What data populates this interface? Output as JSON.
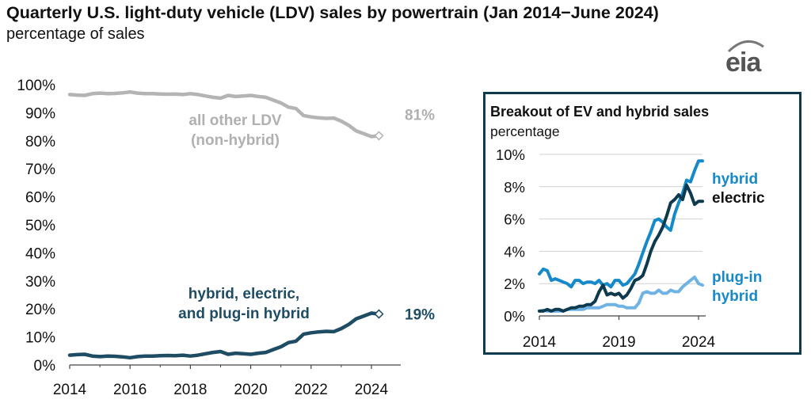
{
  "title": "Quarterly U.S. light-duty vehicle (LDV) sales by powertrain (Jan 2014−June 2024)",
  "subtitle": "percentage of sales",
  "logo_text": "eia",
  "colors": {
    "other": "#b4b4b4",
    "combined": "#1e4c63",
    "hybrid": "#1689c9",
    "electric": "#0d3a4f",
    "plugin": "#6fb3e5",
    "grid": "#d0d0d0",
    "frame": "#0d3a4f"
  },
  "chart_data": [
    {
      "type": "line",
      "xlabel": "",
      "ylabel": "",
      "xlim": [
        2014,
        2024.5
      ],
      "ylim": [
        0,
        100
      ],
      "grid": true,
      "x_ticks": [
        "2014",
        "2016",
        "2018",
        "2020",
        "2022",
        "2024"
      ],
      "y_ticks": [
        "0%",
        "10%",
        "20%",
        "30%",
        "40%",
        "50%",
        "60%",
        "70%",
        "80%",
        "90%",
        "100%"
      ],
      "series": [
        {
          "name": "all other LDV (non-hybrid)",
          "label_line1": "all other LDV",
          "label_line2": "(non-hybrid)",
          "end_label": "81%",
          "x": [
            2014.0,
            2014.25,
            2014.5,
            2014.75,
            2015.0,
            2015.25,
            2015.5,
            2015.75,
            2016.0,
            2016.25,
            2016.5,
            2016.75,
            2017.0,
            2017.25,
            2017.5,
            2017.75,
            2018.0,
            2018.25,
            2018.5,
            2018.75,
            2019.0,
            2019.25,
            2019.5,
            2019.75,
            2020.0,
            2020.25,
            2020.5,
            2020.75,
            2021.0,
            2021.25,
            2021.5,
            2021.75,
            2022.0,
            2022.25,
            2022.5,
            2022.75,
            2023.0,
            2023.25,
            2023.5,
            2023.75,
            2024.0,
            2024.25
          ],
          "values": [
            96.5,
            96.3,
            96.2,
            96.8,
            97.0,
            96.8,
            96.9,
            97.1,
            97.4,
            97.0,
            96.8,
            96.8,
            96.7,
            96.6,
            96.7,
            96.5,
            96.8,
            96.5,
            96.0,
            95.5,
            95.2,
            96.2,
            95.8,
            96.0,
            96.2,
            95.8,
            95.5,
            94.5,
            93.5,
            92.0,
            91.5,
            89.0,
            88.5,
            88.2,
            88.0,
            88.1,
            87.0,
            85.5,
            83.5,
            82.5,
            81.5,
            81.8
          ]
        },
        {
          "name": "hybrid, electric, and plug-in hybrid",
          "label_line1": "hybrid, electric,",
          "label_line2": "and plug-in hybrid",
          "end_label": "19%",
          "x": [
            2014.0,
            2014.25,
            2014.5,
            2014.75,
            2015.0,
            2015.25,
            2015.5,
            2015.75,
            2016.0,
            2016.25,
            2016.5,
            2016.75,
            2017.0,
            2017.25,
            2017.5,
            2017.75,
            2018.0,
            2018.25,
            2018.5,
            2018.75,
            2019.0,
            2019.25,
            2019.5,
            2019.75,
            2020.0,
            2020.25,
            2020.5,
            2020.75,
            2021.0,
            2021.25,
            2021.5,
            2021.75,
            2022.0,
            2022.25,
            2022.5,
            2022.75,
            2023.0,
            2023.25,
            2023.5,
            2023.75,
            2024.0,
            2024.25
          ],
          "values": [
            3.5,
            3.7,
            3.8,
            3.2,
            3.0,
            3.2,
            3.1,
            2.9,
            2.6,
            3.0,
            3.2,
            3.2,
            3.3,
            3.4,
            3.3,
            3.5,
            3.2,
            3.5,
            4.0,
            4.5,
            4.8,
            3.8,
            4.2,
            4.0,
            3.8,
            4.2,
            4.5,
            5.5,
            6.5,
            8.0,
            8.5,
            11.0,
            11.5,
            11.8,
            12.0,
            11.9,
            13.0,
            14.5,
            16.5,
            17.5,
            18.5,
            18.2
          ]
        }
      ]
    },
    {
      "type": "line",
      "title": "Breakout of EV and hybrid sales",
      "subtitle": "percentage",
      "xlabel": "",
      "ylabel": "",
      "xlim": [
        2014,
        2024.25
      ],
      "ylim": [
        0,
        10
      ],
      "grid": true,
      "x_ticks": [
        "2014",
        "2019",
        "2024"
      ],
      "y_ticks": [
        "0%",
        "2%",
        "4%",
        "6%",
        "8%",
        "10%"
      ],
      "series": [
        {
          "name": "hybrid",
          "x": [
            2014.0,
            2014.25,
            2014.5,
            2014.75,
            2015.0,
            2015.25,
            2015.5,
            2015.75,
            2016.0,
            2016.25,
            2016.5,
            2016.75,
            2017.0,
            2017.25,
            2017.5,
            2017.75,
            2018.0,
            2018.25,
            2018.5,
            2018.75,
            2019.0,
            2019.25,
            2019.5,
            2019.75,
            2020.0,
            2020.25,
            2020.5,
            2020.75,
            2021.0,
            2021.25,
            2021.5,
            2021.75,
            2022.0,
            2022.25,
            2022.5,
            2022.75,
            2023.0,
            2023.25,
            2023.5,
            2023.75,
            2024.0,
            2024.25
          ],
          "values": [
            2.6,
            2.9,
            2.8,
            2.2,
            2.3,
            2.2,
            2.1,
            2.0,
            1.8,
            2.2,
            2.2,
            2.0,
            2.1,
            2.1,
            2.0,
            2.2,
            1.9,
            2.0,
            1.8,
            2.2,
            2.2,
            1.9,
            2.0,
            2.3,
            2.6,
            3.2,
            3.9,
            4.6,
            5.2,
            5.9,
            6.0,
            5.8,
            5.5,
            5.3,
            6.3,
            7.0,
            7.6,
            8.4,
            8.3,
            9.0,
            9.6,
            9.6
          ]
        },
        {
          "name": "electric",
          "x": [
            2014.0,
            2014.25,
            2014.5,
            2014.75,
            2015.0,
            2015.25,
            2015.5,
            2015.75,
            2016.0,
            2016.25,
            2016.5,
            2016.75,
            2017.0,
            2017.25,
            2017.5,
            2017.75,
            2018.0,
            2018.25,
            2018.5,
            2018.75,
            2019.0,
            2019.25,
            2019.5,
            2019.75,
            2020.0,
            2020.25,
            2020.5,
            2020.75,
            2021.0,
            2021.25,
            2021.5,
            2021.75,
            2022.0,
            2022.25,
            2022.5,
            2022.75,
            2023.0,
            2023.25,
            2023.5,
            2023.75,
            2024.0,
            2024.25
          ],
          "values": [
            0.3,
            0.3,
            0.4,
            0.3,
            0.4,
            0.4,
            0.3,
            0.4,
            0.5,
            0.5,
            0.6,
            0.6,
            0.7,
            0.7,
            0.9,
            1.5,
            1.9,
            1.3,
            1.4,
            1.3,
            1.4,
            1.1,
            1.3,
            1.7,
            2.2,
            2.3,
            2.5,
            3.2,
            4.0,
            4.6,
            5.0,
            5.5,
            6.2,
            7.0,
            7.2,
            7.5,
            7.2,
            8.1,
            7.6,
            6.9,
            7.1,
            7.1
          ]
        },
        {
          "name": "plug-in hybrid",
          "label_line1": "plug-in",
          "label_line2": "hybrid",
          "x": [
            2014.0,
            2014.25,
            2014.5,
            2014.75,
            2015.0,
            2015.25,
            2015.5,
            2015.75,
            2016.0,
            2016.25,
            2016.5,
            2016.75,
            2017.0,
            2017.25,
            2017.5,
            2017.75,
            2018.0,
            2018.25,
            2018.5,
            2018.75,
            2019.0,
            2019.25,
            2019.5,
            2019.75,
            2020.0,
            2020.25,
            2020.5,
            2020.75,
            2021.0,
            2021.25,
            2021.5,
            2021.75,
            2022.0,
            2022.25,
            2022.5,
            2022.75,
            2023.0,
            2023.25,
            2023.5,
            2023.75,
            2024.0,
            2024.25
          ],
          "values": [
            0.3,
            0.35,
            0.3,
            0.3,
            0.3,
            0.3,
            0.3,
            0.4,
            0.4,
            0.4,
            0.4,
            0.4,
            0.5,
            0.5,
            0.5,
            0.5,
            0.6,
            0.7,
            0.7,
            0.7,
            0.6,
            0.6,
            0.5,
            0.5,
            0.5,
            0.8,
            1.4,
            1.5,
            1.4,
            1.4,
            1.6,
            1.4,
            1.4,
            1.6,
            1.5,
            1.5,
            1.8,
            2.0,
            2.2,
            2.4,
            2.0,
            1.9
          ]
        }
      ]
    }
  ]
}
